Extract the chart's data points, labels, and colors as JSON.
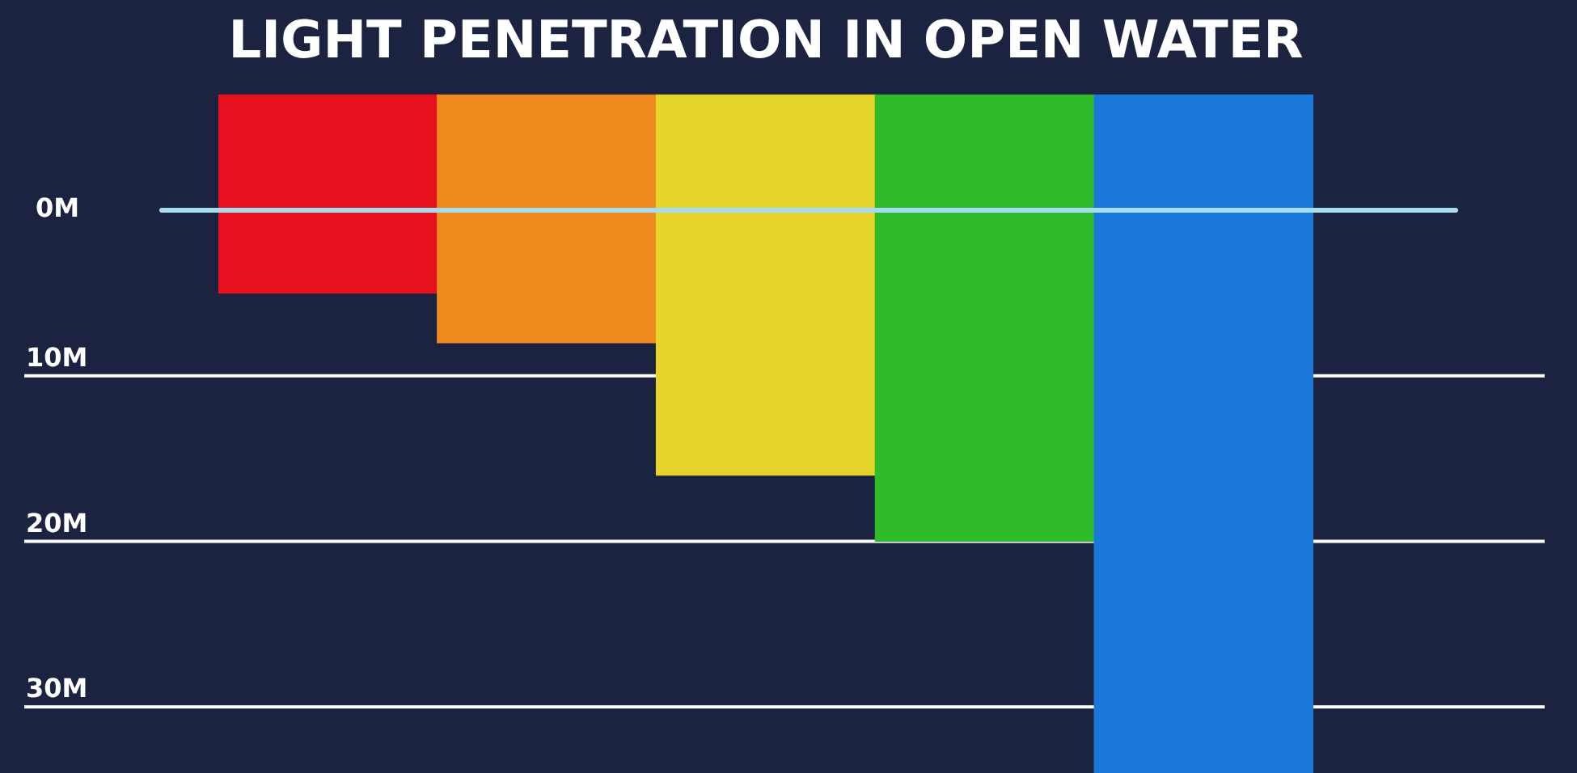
{
  "chart_data": {
    "type": "bar",
    "title": "LIGHT PENETRATION IN OPEN WATER",
    "categories": [
      null,
      null,
      null,
      null,
      null
    ],
    "values": [
      12,
      15,
      23,
      27,
      41
    ],
    "base": [
      -7,
      -7,
      -7,
      -7,
      -7
    ],
    "colors": [
      "#e8121e",
      "#ef8a1e",
      "#e6d42a",
      "#2fbb2a",
      "#1a78d8"
    ],
    "ylim": [
      34,
      -7
    ],
    "yticks": [
      {
        "value": 0,
        "label": "0M"
      },
      {
        "value": 10,
        "label": "10M"
      },
      {
        "value": 20,
        "label": "20M"
      },
      {
        "value": 30,
        "label": "30M"
      }
    ],
    "ref_lines": [
      {
        "axis": "y",
        "value": 0,
        "color": "#a6dcef"
      }
    ],
    "grid": "y"
  }
}
